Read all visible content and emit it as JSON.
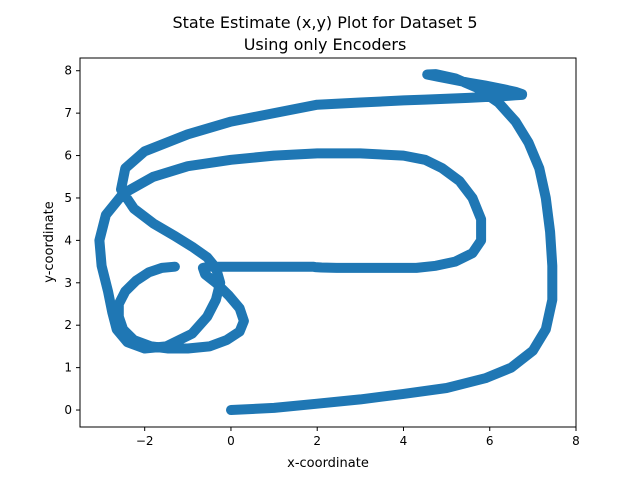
{
  "chart_data": {
    "type": "scatter",
    "title_line1": "State Estimate (x,y) Plot for Dataset 5",
    "title_line2": "Using only Encoders",
    "xlabel": "x-coordinate",
    "ylabel": "y-coordinate",
    "xlim": [
      -3.5,
      8.0
    ],
    "ylim": [
      -0.4,
      8.3
    ],
    "xticks": [
      -2,
      0,
      2,
      4,
      6,
      8
    ],
    "xtick_labels": [
      "−2",
      "0",
      "2",
      "4",
      "6",
      "8"
    ],
    "yticks": [
      0,
      1,
      2,
      3,
      4,
      5,
      6,
      7,
      8
    ],
    "ytick_labels": [
      "0",
      "1",
      "2",
      "3",
      "4",
      "5",
      "6",
      "7",
      "8"
    ],
    "grid": false,
    "legend": "none",
    "series_color": "#1f77b4",
    "trajectory": {
      "x": [
        0,
        1,
        2,
        3,
        4,
        5,
        5.9,
        6.5,
        7.0,
        7.3,
        7.45,
        7.45,
        7.4,
        7.3,
        7.15,
        6.9,
        6.6,
        6.2,
        5.7,
        5.2,
        4.75,
        4.55,
        4.6,
        4.8,
        5.1,
        5.5,
        5.9,
        6.3,
        6.6,
        6.75,
        6.75,
        6.6,
        6.3,
        5.9,
        5.5,
        5.0,
        4.5,
        4.0,
        3.0,
        2.0,
        1.0,
        0,
        -1.0,
        -2.0,
        -2.45,
        -2.55,
        -2.25,
        -1.8,
        -1.3,
        -0.9,
        -0.55,
        -0.35,
        -0.25,
        -0.35,
        -0.55,
        -0.9,
        -1.5,
        -2.0,
        -2.4,
        -2.65,
        -2.75,
        -2.85,
        -3.0,
        -3.05,
        -2.9,
        -2.5,
        -1.8,
        -1.0,
        0,
        1.0,
        2.0,
        3.0,
        4.0,
        4.5,
        4.9,
        5.3,
        5.6,
        5.8,
        5.8,
        5.6,
        5.2,
        4.75,
        4.3,
        4.0,
        3.95,
        4.05,
        4.2,
        4.3,
        4.25,
        4.05,
        3.7,
        3.2,
        2.8,
        2.45,
        2.1,
        1.95,
        1.9,
        1.8,
        1.6,
        1.25,
        0.8,
        0.3,
        -0.15,
        -0.5,
        -0.65,
        -0.6,
        -0.35,
        -0.05,
        0.2,
        0.3,
        0.2,
        -0.1,
        -0.5,
        -1.0,
        -1.45,
        -1.85,
        -2.25,
        -2.5,
        -2.6,
        -2.6,
        -2.45,
        -2.2,
        -1.9,
        -1.6,
        -1.3
      ],
      "y": [
        0,
        0.05,
        0.15,
        0.25,
        0.38,
        0.52,
        0.75,
        1.0,
        1.4,
        1.9,
        2.6,
        3.4,
        4.2,
        5.0,
        5.7,
        6.3,
        6.8,
        7.25,
        7.6,
        7.82,
        7.92,
        7.91,
        7.9,
        7.86,
        7.8,
        7.72,
        7.65,
        7.57,
        7.5,
        7.45,
        7.43,
        7.42,
        7.4,
        7.38,
        7.36,
        7.34,
        7.32,
        7.3,
        7.25,
        7.2,
        7.0,
        6.8,
        6.5,
        6.1,
        5.7,
        5.2,
        4.75,
        4.4,
        4.1,
        3.85,
        3.6,
        3.35,
        3.0,
        2.6,
        2.2,
        1.8,
        1.5,
        1.45,
        1.6,
        1.9,
        2.3,
        2.8,
        3.4,
        4.0,
        4.6,
        5.1,
        5.5,
        5.75,
        5.9,
        6.0,
        6.05,
        6.05,
        6.0,
        5.9,
        5.7,
        5.4,
        5.0,
        4.5,
        4.0,
        3.7,
        3.5,
        3.4,
        3.35,
        3.35,
        3.35,
        3.35,
        3.35,
        3.35,
        3.35,
        3.35,
        3.35,
        3.35,
        3.35,
        3.35,
        3.36,
        3.37,
        3.38,
        3.38,
        3.38,
        3.38,
        3.38,
        3.38,
        3.38,
        3.38,
        3.35,
        3.2,
        3.0,
        2.7,
        2.4,
        2.1,
        1.85,
        1.65,
        1.5,
        1.45,
        1.45,
        1.5,
        1.65,
        1.9,
        2.2,
        2.5,
        2.8,
        3.05,
        3.25,
        3.35,
        3.38
      ]
    }
  }
}
